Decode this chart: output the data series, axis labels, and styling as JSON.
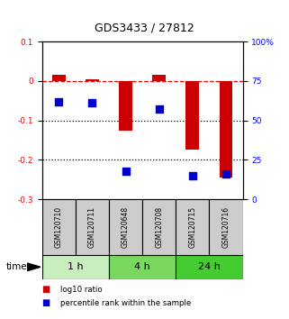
{
  "title": "GDS3433 / 27812",
  "samples": [
    "GSM120710",
    "GSM120711",
    "GSM120648",
    "GSM120708",
    "GSM120715",
    "GSM120716"
  ],
  "groups": [
    {
      "label": "1 h",
      "indices": [
        0,
        1
      ],
      "color": "#c8eec0"
    },
    {
      "label": "4 h",
      "indices": [
        2,
        3
      ],
      "color": "#78d860"
    },
    {
      "label": "24 h",
      "indices": [
        4,
        5
      ],
      "color": "#44cc30"
    }
  ],
  "log10_ratio": [
    0.015,
    0.005,
    -0.125,
    0.015,
    -0.175,
    -0.245
  ],
  "percentile_rank": [
    62,
    61,
    18,
    57,
    15,
    16
  ],
  "bar_color": "#cc0000",
  "dot_color": "#0000cc",
  "ylim_left": [
    -0.3,
    0.1
  ],
  "ylim_right": [
    0,
    100
  ],
  "yticks_left": [
    0.1,
    0.0,
    -0.1,
    -0.2,
    -0.3
  ],
  "yticks_right": [
    100,
    75,
    50,
    25,
    0
  ],
  "ytick_labels_left": [
    "0.1",
    "0",
    "-0.1",
    "-0.2",
    "-0.3"
  ],
  "ytick_labels_right": [
    "100%",
    "75",
    "50",
    "25",
    "0"
  ],
  "hlines": [
    0.0,
    -0.1,
    -0.2
  ],
  "hline_styles": [
    "dashed",
    "dotted",
    "dotted"
  ],
  "hline_colors": [
    "red",
    "black",
    "black"
  ],
  "legend_items": [
    {
      "label": "log10 ratio",
      "color": "#cc0000"
    },
    {
      "label": "percentile rank within the sample",
      "color": "#0000cc"
    }
  ],
  "time_label": "time",
  "bg_color": "#ffffff",
  "bar_width": 0.4,
  "dot_size": 28
}
